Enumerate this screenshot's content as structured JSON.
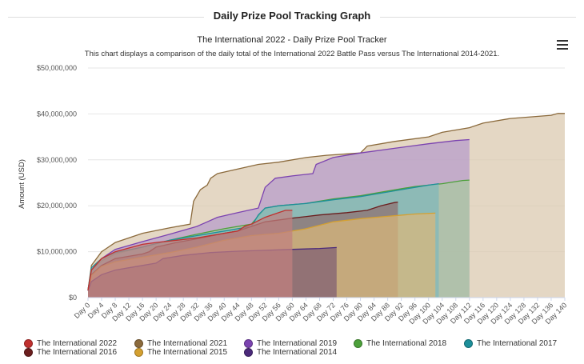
{
  "page_header": "Daily Prize Pool Tracking Graph",
  "menu_icon": "hamburger-menu-icon",
  "chart_data": {
    "type": "area",
    "title": "The International 2022 - Daily Prize Pool Tracker",
    "subtitle": "This chart displays a comparison of the daily total of the International 2022 Battle Pass versus The International 2014-2021.",
    "ylabel": "Amount (USD)",
    "xlabel": "",
    "ylim": [
      0,
      50000000
    ],
    "xlim": [
      0,
      140
    ],
    "y_ticks": [
      "$0",
      "$10,000,000",
      "$20,000,000",
      "$30,000,000",
      "$40,000,000",
      "$50,000,000"
    ],
    "x_ticks": [
      "Day 0",
      "Day 4",
      "Day 8",
      "Day 12",
      "Day 16",
      "Day 20",
      "Day 24",
      "Day 28",
      "Day 32",
      "Day 36",
      "Day 40",
      "Day 44",
      "Day 48",
      "Day 52",
      "Day 56",
      "Day 60",
      "Day 64",
      "Day 68",
      "Day 72",
      "Day 76",
      "Day 80",
      "Day 84",
      "Day 88",
      "Day 92",
      "Day 96",
      "Day 100",
      "Day 104",
      "Day 108",
      "Day 112",
      "Day 116",
      "Day 120",
      "Day 124",
      "Day 128",
      "Day 132",
      "Day 136",
      "Day 140"
    ],
    "series": [
      {
        "name": "The International 2021",
        "color": "#8b6a3c",
        "fill": "#d9c7ad",
        "points": [
          [
            0,
            1600000
          ],
          [
            1,
            7000000
          ],
          [
            4,
            10000000
          ],
          [
            8,
            12000000
          ],
          [
            16,
            14000000
          ],
          [
            24,
            15200000
          ],
          [
            30,
            16000000
          ],
          [
            31,
            21000000
          ],
          [
            33,
            23500000
          ],
          [
            35,
            24500000
          ],
          [
            36,
            26000000
          ],
          [
            38,
            27000000
          ],
          [
            44,
            28000000
          ],
          [
            50,
            29000000
          ],
          [
            56,
            29500000
          ],
          [
            64,
            30500000
          ],
          [
            70,
            31000000
          ],
          [
            80,
            31500000
          ],
          [
            82,
            33000000
          ],
          [
            90,
            34000000
          ],
          [
            100,
            35000000
          ],
          [
            104,
            36000000
          ],
          [
            112,
            37000000
          ],
          [
            116,
            38000000
          ],
          [
            124,
            39000000
          ],
          [
            136,
            39700000
          ],
          [
            138,
            40100000
          ],
          [
            140,
            40100000
          ]
        ]
      },
      {
        "name": "The International 2019",
        "color": "#7b43b0",
        "fill": "#b59bcb",
        "points": [
          [
            0,
            1600000
          ],
          [
            1,
            6000000
          ],
          [
            4,
            8500000
          ],
          [
            8,
            10500000
          ],
          [
            16,
            12200000
          ],
          [
            24,
            13800000
          ],
          [
            32,
            15500000
          ],
          [
            38,
            17500000
          ],
          [
            44,
            18500000
          ],
          [
            50,
            19500000
          ],
          [
            52,
            24000000
          ],
          [
            55,
            26000000
          ],
          [
            60,
            26500000
          ],
          [
            66,
            27000000
          ],
          [
            67,
            29000000
          ],
          [
            72,
            30500000
          ],
          [
            80,
            31500000
          ],
          [
            90,
            32500000
          ],
          [
            100,
            33500000
          ],
          [
            108,
            34200000
          ],
          [
            112,
            34400000
          ]
        ]
      },
      {
        "name": "The International 2018",
        "color": "#4ca03a",
        "fill": "#a9c9a0",
        "points": [
          [
            0,
            1600000
          ],
          [
            1,
            6000000
          ],
          [
            4,
            8000000
          ],
          [
            8,
            9500000
          ],
          [
            16,
            11000000
          ],
          [
            24,
            12500000
          ],
          [
            32,
            13800000
          ],
          [
            40,
            15000000
          ],
          [
            48,
            16000000
          ],
          [
            52,
            19500000
          ],
          [
            56,
            20000000
          ],
          [
            64,
            20500000
          ],
          [
            72,
            21500000
          ],
          [
            80,
            22200000
          ],
          [
            88,
            23200000
          ],
          [
            96,
            24200000
          ],
          [
            104,
            24800000
          ],
          [
            110,
            25500000
          ],
          [
            112,
            25600000
          ]
        ]
      },
      {
        "name": "The International 2017",
        "color": "#1d8f9a",
        "fill": "#7fb7ba",
        "points": [
          [
            0,
            1600000
          ],
          [
            1,
            6500000
          ],
          [
            4,
            8500000
          ],
          [
            8,
            9800000
          ],
          [
            16,
            11000000
          ],
          [
            24,
            12500000
          ],
          [
            32,
            13500000
          ],
          [
            40,
            14500000
          ],
          [
            48,
            15500000
          ],
          [
            50,
            18000000
          ],
          [
            52,
            19500000
          ],
          [
            56,
            20000000
          ],
          [
            64,
            20500000
          ],
          [
            72,
            21300000
          ],
          [
            80,
            22000000
          ],
          [
            88,
            23000000
          ],
          [
            96,
            24000000
          ],
          [
            100,
            24500000
          ],
          [
            103,
            24800000
          ]
        ]
      },
      {
        "name": "The International 2016",
        "color": "#6b1e1e",
        "fill": "#8f6f6f",
        "points": [
          [
            0,
            1600000
          ],
          [
            1,
            5000000
          ],
          [
            4,
            7000000
          ],
          [
            8,
            8500000
          ],
          [
            16,
            9500000
          ],
          [
            18,
            10000000
          ],
          [
            20,
            11000000
          ],
          [
            26,
            12000000
          ],
          [
            32,
            12800000
          ],
          [
            40,
            14000000
          ],
          [
            44,
            14500000
          ],
          [
            48,
            15500000
          ],
          [
            52,
            16500000
          ],
          [
            60,
            17300000
          ],
          [
            68,
            18000000
          ],
          [
            76,
            18500000
          ],
          [
            82,
            19000000
          ],
          [
            86,
            20000000
          ],
          [
            90,
            20700000
          ],
          [
            91,
            20800000
          ]
        ]
      },
      {
        "name": "The International 2015",
        "color": "#d4a030",
        "fill": "#dbb77a",
        "points": [
          [
            0,
            1600000
          ],
          [
            1,
            4800000
          ],
          [
            4,
            6800000
          ],
          [
            8,
            7800000
          ],
          [
            16,
            8800000
          ],
          [
            24,
            9800000
          ],
          [
            32,
            11000000
          ],
          [
            40,
            12500000
          ],
          [
            48,
            13500000
          ],
          [
            56,
            14000000
          ],
          [
            64,
            15000000
          ],
          [
            72,
            16500000
          ],
          [
            80,
            17200000
          ],
          [
            88,
            17700000
          ],
          [
            96,
            18200000
          ],
          [
            102,
            18400000
          ]
        ]
      },
      {
        "name": "The International 2014",
        "color": "#4b2a7a",
        "fill": "#7e5d73",
        "points": [
          [
            0,
            1500000
          ],
          [
            1,
            3500000
          ],
          [
            4,
            5000000
          ],
          [
            8,
            6000000
          ],
          [
            12,
            6500000
          ],
          [
            16,
            7000000
          ],
          [
            20,
            7500000
          ],
          [
            22,
            8500000
          ],
          [
            28,
            9200000
          ],
          [
            36,
            9800000
          ],
          [
            44,
            10100000
          ],
          [
            52,
            10300000
          ],
          [
            60,
            10500000
          ],
          [
            68,
            10700000
          ],
          [
            73,
            10900000
          ]
        ]
      },
      {
        "name": "The International 2022",
        "color": "#c0302e",
        "fill": "#c0807f",
        "points": [
          [
            0,
            1600000
          ],
          [
            1,
            6000000
          ],
          [
            4,
            8500000
          ],
          [
            8,
            10000000
          ],
          [
            12,
            10800000
          ],
          [
            16,
            11600000
          ],
          [
            20,
            12000000
          ],
          [
            26,
            12500000
          ],
          [
            32,
            13000000
          ],
          [
            40,
            14000000
          ],
          [
            44,
            14500000
          ],
          [
            46,
            15500000
          ],
          [
            48,
            16000000
          ],
          [
            52,
            17500000
          ],
          [
            56,
            18500000
          ],
          [
            58,
            19000000
          ],
          [
            60,
            19000000
          ]
        ]
      }
    ]
  },
  "legend": [
    {
      "label": "The International 2022",
      "color": "#c0302e"
    },
    {
      "label": "The International 2021",
      "color": "#8b6a3c"
    },
    {
      "label": "The International 2019",
      "color": "#7b43b0"
    },
    {
      "label": "The International 2018",
      "color": "#4ca03a"
    },
    {
      "label": "The International 2017",
      "color": "#1d8f9a"
    },
    {
      "label": "The International 2016",
      "color": "#6b1e1e"
    },
    {
      "label": "The International 2015",
      "color": "#d4a030"
    },
    {
      "label": "The International 2014",
      "color": "#4b2a7a"
    }
  ]
}
